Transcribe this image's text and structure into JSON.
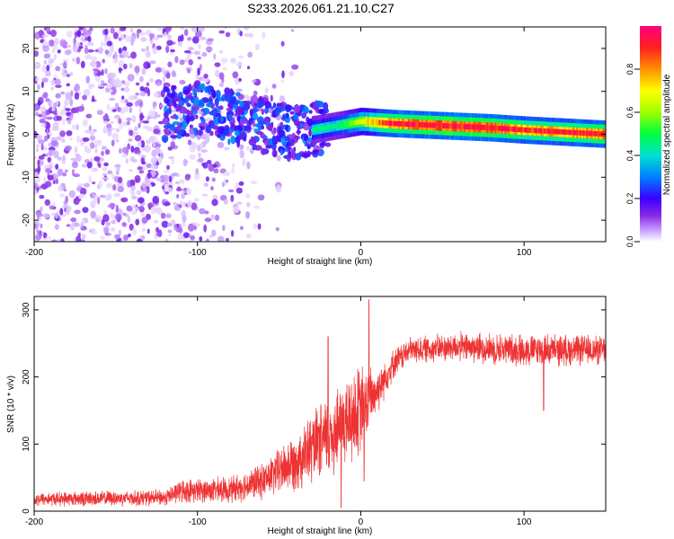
{
  "title": "S233.2026.061.21.10.C27",
  "chart_data": [
    {
      "type": "heatmap",
      "xlabel": "Height of straight line (km)",
      "ylabel": "Frequency (Hz)",
      "xlim": [
        -200,
        150
      ],
      "ylim": [
        -25,
        25
      ],
      "xticks": [
        -200,
        -100,
        0,
        100
      ],
      "yticks": [
        -20,
        -10,
        0,
        10,
        20
      ],
      "colorbar": {
        "label": "Normalized spectral amplitude",
        "range": [
          0,
          1
        ],
        "ticks": [
          0.0,
          0.2,
          0.4,
          0.6,
          0.8
        ]
      },
      "ridge": {
        "description_points": [
          {
            "x": -115,
            "f": 5,
            "amp": 0.3
          },
          {
            "x": -100,
            "f": 6,
            "amp": 0.3
          },
          {
            "x": -80,
            "f": 4,
            "amp": 0.25
          },
          {
            "x": -60,
            "f": 2,
            "amp": 0.3
          },
          {
            "x": -45,
            "f": 0.5,
            "amp": 0.35
          },
          {
            "x": -30,
            "f": 1,
            "amp": 0.4
          },
          {
            "x": -15,
            "f": 2,
            "amp": 0.4
          },
          {
            "x": 0,
            "f": 3,
            "amp": 0.6
          },
          {
            "x": 20,
            "f": 2.5,
            "amp": 0.85
          },
          {
            "x": 50,
            "f": 2,
            "amp": 0.9
          },
          {
            "x": 80,
            "f": 1.5,
            "amp": 0.9
          },
          {
            "x": 100,
            "f": 1,
            "amp": 0.8
          },
          {
            "x": 150,
            "f": 0,
            "amp": 0.85
          }
        ]
      },
      "scatter_noise_region": {
        "xmin": -200,
        "xmax": -80,
        "fmin": -25,
        "fmax": 25
      }
    },
    {
      "type": "line",
      "color": "#ee3333",
      "xlabel": "Height of straight line (km)",
      "ylabel": "SNR (10 * v/v)",
      "xlim": [
        -200,
        150
      ],
      "ylim": [
        0,
        320
      ],
      "xticks": [
        -200,
        -100,
        0,
        100
      ],
      "yticks": [
        0,
        100,
        200,
        300
      ],
      "profile": [
        {
          "x": -200,
          "mean": 18,
          "spread": 12
        },
        {
          "x": -120,
          "mean": 20,
          "spread": 14
        },
        {
          "x": -110,
          "mean": 30,
          "spread": 20
        },
        {
          "x": -80,
          "mean": 32,
          "spread": 22
        },
        {
          "x": -60,
          "mean": 45,
          "spread": 30
        },
        {
          "x": -40,
          "mean": 75,
          "spread": 50
        },
        {
          "x": -20,
          "mean": 110,
          "spread": 70
        },
        {
          "x": -10,
          "mean": 130,
          "spread": 80
        },
        {
          "x": 0,
          "mean": 150,
          "spread": 80
        },
        {
          "x": 10,
          "mean": 180,
          "spread": 40
        },
        {
          "x": 20,
          "mean": 220,
          "spread": 25
        },
        {
          "x": 30,
          "mean": 240,
          "spread": 22
        },
        {
          "x": 60,
          "mean": 245,
          "spread": 25
        },
        {
          "x": 100,
          "mean": 240,
          "spread": 28
        },
        {
          "x": 150,
          "mean": 240,
          "spread": 25
        }
      ],
      "spikes": [
        {
          "x": 5,
          "value": 315
        },
        {
          "x": 2,
          "value": 45
        },
        {
          "x": 112,
          "value": 150
        },
        {
          "x": -12,
          "value": 5
        },
        {
          "x": -20,
          "value": 260
        }
      ]
    }
  ]
}
